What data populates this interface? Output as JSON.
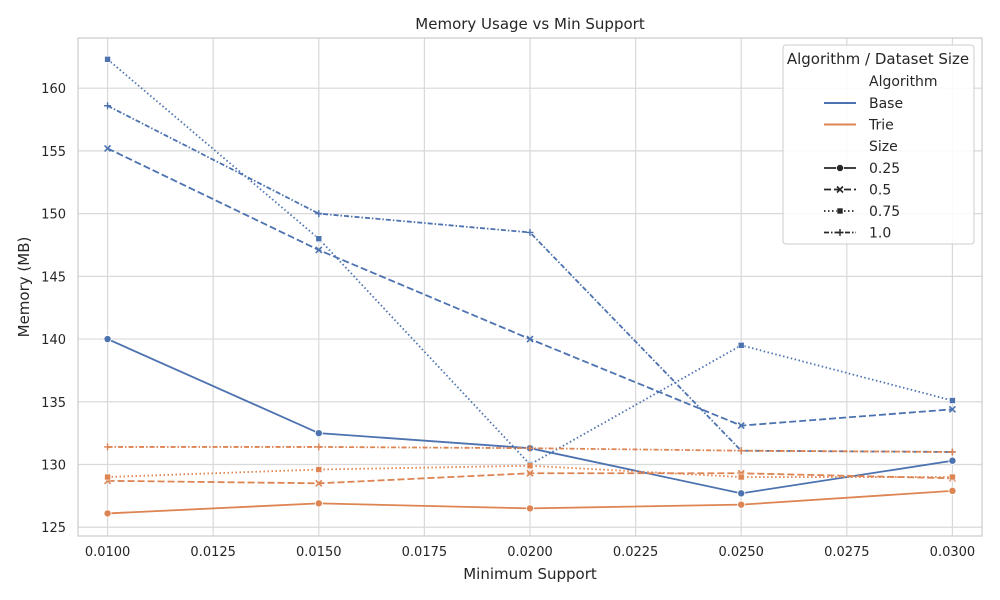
{
  "chart_data": {
    "type": "line",
    "title": "Memory Usage vs Min Support",
    "xlabel": "Minimum Support",
    "ylabel": "Memory (MB)",
    "x": [
      0.01,
      0.015,
      0.02,
      0.025,
      0.03
    ],
    "xlim": [
      0.0093,
      0.0307
    ],
    "ylim": [
      124.3,
      164.0
    ],
    "x_ticks": [
      "0.0100",
      "0.0125",
      "0.0150",
      "0.0175",
      "0.0200",
      "0.0225",
      "0.0250",
      "0.0275",
      "0.0300"
    ],
    "y_ticks": [
      "125",
      "130",
      "135",
      "140",
      "145",
      "150",
      "155",
      "160"
    ],
    "grid": true,
    "legend": {
      "title": "Algorithm / Dataset Size",
      "placement": "top-right",
      "algorithm_header": "Algorithm",
      "algorithms": [
        {
          "label": "Base",
          "color": "#4c72b0"
        },
        {
          "label": "Trie",
          "color": "#dd8452"
        }
      ],
      "size_header": "Size",
      "sizes": [
        {
          "label": "0.25",
          "dash": "solid",
          "marker": "circle"
        },
        {
          "label": "0.5",
          "dash": "dashed",
          "marker": "x"
        },
        {
          "label": "0.75",
          "dash": "dotted",
          "marker": "square"
        },
        {
          "label": "1.0",
          "dash": "dashdot",
          "marker": "plus"
        }
      ]
    },
    "series": [
      {
        "algorithm": "Base",
        "size": "0.25",
        "values": [
          140.0,
          132.5,
          131.3,
          127.7,
          130.3
        ]
      },
      {
        "algorithm": "Base",
        "size": "0.5",
        "values": [
          155.2,
          147.1,
          140.0,
          133.1,
          134.4
        ]
      },
      {
        "algorithm": "Base",
        "size": "0.75",
        "values": [
          162.3,
          148.0,
          130.0,
          139.5,
          135.1
        ]
      },
      {
        "algorithm": "Base",
        "size": "1.0",
        "values": [
          158.6,
          150.0,
          148.5,
          131.1,
          131.0
        ]
      },
      {
        "algorithm": "Trie",
        "size": "0.25",
        "values": [
          126.1,
          126.9,
          126.5,
          126.8,
          127.9
        ]
      },
      {
        "algorithm": "Trie",
        "size": "0.5",
        "values": [
          128.7,
          128.5,
          129.3,
          129.3,
          128.9
        ]
      },
      {
        "algorithm": "Trie",
        "size": "0.75",
        "values": [
          129.0,
          129.6,
          129.9,
          129.0,
          129.0
        ]
      },
      {
        "algorithm": "Trie",
        "size": "1.0",
        "values": [
          131.4,
          131.4,
          131.3,
          131.1,
          131.0
        ]
      }
    ]
  }
}
